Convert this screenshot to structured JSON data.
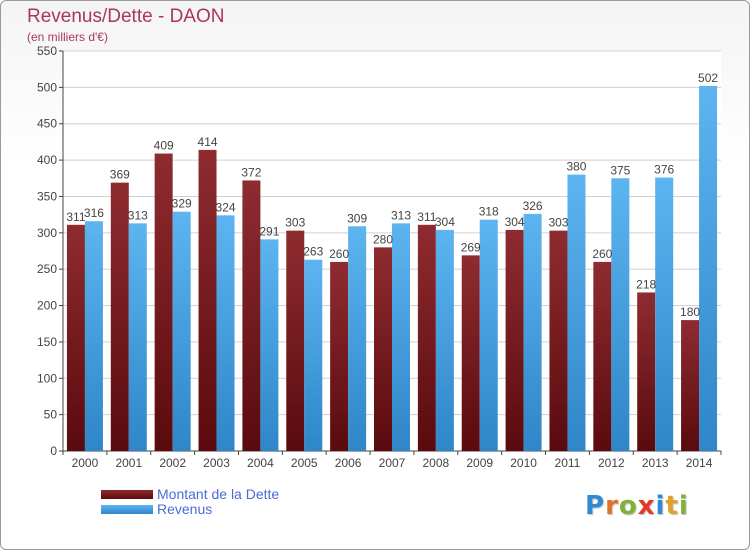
{
  "title": "Revenus/Dette - DAON",
  "subtitle": "(en milliers d'€)",
  "logo": {
    "text": "Proxiti",
    "letters": [
      {
        "ch": "P",
        "color": "#2f8bd0"
      },
      {
        "ch": "r",
        "color": "#e0702a"
      },
      {
        "ch": "o",
        "color": "#7fb23a"
      },
      {
        "ch": "x",
        "color": "#e03a2a"
      },
      {
        "ch": "i",
        "color": "#2f8bd0"
      },
      {
        "ch": "t",
        "color": "#e0a02a"
      },
      {
        "ch": "i",
        "color": "#7fb23a"
      }
    ]
  },
  "colors": {
    "dette": "#7a1f23",
    "revenus": "#4ea6e6",
    "axis": "#444444",
    "grid": "#d0d0d0",
    "label": "#444444"
  },
  "chart_data": {
    "type": "bar",
    "categories": [
      "2000",
      "2001",
      "2002",
      "2003",
      "2004",
      "2005",
      "2006",
      "2007",
      "2008",
      "2009",
      "2010",
      "2011",
      "2012",
      "2013",
      "2014"
    ],
    "series": [
      {
        "name": "Montant de la Dette",
        "values": [
          311,
          369,
          409,
          414,
          372,
          303,
          260,
          280,
          311,
          269,
          304,
          303,
          260,
          218,
          180
        ]
      },
      {
        "name": "Revenus",
        "values": [
          316,
          313,
          329,
          324,
          291,
          263,
          309,
          313,
          304,
          318,
          326,
          380,
          375,
          376,
          502
        ]
      }
    ],
    "yticks": [
      "0",
      "50",
      "100",
      "150",
      "200",
      "250",
      "300",
      "350",
      "400",
      "450",
      "500",
      "550"
    ],
    "ylim": [
      0,
      550
    ],
    "grid": true,
    "legend": "bottom-left"
  }
}
